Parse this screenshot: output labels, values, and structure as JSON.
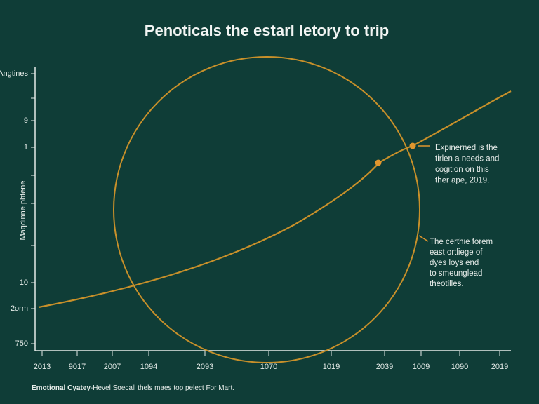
{
  "title": "Penoticals the estarl letory to trip",
  "y_axis_label": "Maqdinne phtene",
  "y_tick_labels": [
    "Angtines",
    "9",
    "1",
    "10",
    "2orm",
    "750"
  ],
  "x_tick_labels": [
    "2013",
    "9017",
    "2007",
    "1094",
    "2093",
    "1070",
    "1019",
    "2039",
    "1009",
    "1090",
    "2019"
  ],
  "annotations": [
    {
      "lines": [
        "Expinerned is the",
        "tirlen a needs and",
        "cogition on this",
        "ther ape, 2019."
      ]
    },
    {
      "lines": [
        "The certhie forem",
        "east ortliege of",
        "dyes loys end",
        "to smeunglead",
        "theotilles."
      ]
    }
  ],
  "footer": {
    "bold": "Emotional Cyatey",
    "text": "-Hevel Soecall thels maes top pelect For Mart."
  }
}
